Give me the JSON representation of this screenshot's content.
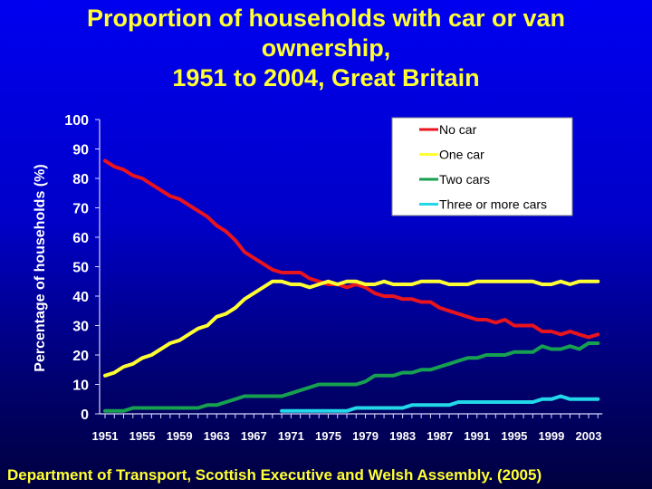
{
  "title_lines": [
    "Proportion of households with car or van",
    "ownership,",
    "1951 to 2004, Great Britain"
  ],
  "source": "Department of Transport, Scottish Executive and Welsh Assembly. (2005)",
  "chart_data": {
    "type": "line",
    "title": "Proportion of households with car or van ownership, 1951 to 2004, Great Britain",
    "ylabel": "Percentage of households (%)",
    "xlabel": "",
    "xlim": [
      1951,
      2004
    ],
    "ylim": [
      0,
      100
    ],
    "yticks": [
      0,
      10,
      20,
      30,
      40,
      50,
      60,
      70,
      80,
      90,
      100
    ],
    "xtick_labels": [
      "1951",
      "1955",
      "1959",
      "1963",
      "1967",
      "1971",
      "1975",
      "1979",
      "1983",
      "1987",
      "1991",
      "1995",
      "1999",
      "2003"
    ],
    "grid": false,
    "legend_position": "top-right",
    "series": [
      {
        "name": "No car",
        "color": "#e8141e",
        "x_start": 1951,
        "values": [
          86,
          84,
          83,
          81,
          80,
          78,
          76,
          74,
          73,
          71,
          69,
          67,
          64,
          62,
          59,
          55,
          53,
          51,
          49,
          48,
          48,
          48,
          46,
          45,
          44,
          44,
          43,
          44,
          43,
          41,
          40,
          40,
          39,
          39,
          38,
          38,
          36,
          35,
          34,
          33,
          32,
          32,
          31,
          32,
          30,
          30,
          30,
          28,
          28,
          27,
          28,
          27,
          26,
          27
        ]
      },
      {
        "name": "One car",
        "color": "#ffff33",
        "x_start": 1951,
        "values": [
          13,
          14,
          16,
          17,
          19,
          20,
          22,
          24,
          25,
          27,
          29,
          30,
          33,
          34,
          36,
          39,
          41,
          43,
          45,
          45,
          44,
          44,
          43,
          44,
          45,
          44,
          45,
          45,
          44,
          44,
          45,
          44,
          44,
          44,
          45,
          45,
          45,
          44,
          44,
          44,
          45,
          45,
          45,
          45,
          45,
          45,
          45,
          44,
          44,
          45,
          44,
          45,
          45,
          45
        ]
      },
      {
        "name": "Two cars",
        "color": "#16a050",
        "x_start": 1951,
        "values": [
          1,
          1,
          1,
          2,
          2,
          2,
          2,
          2,
          2,
          2,
          2,
          3,
          3,
          4,
          5,
          6,
          6,
          6,
          6,
          6,
          7,
          8,
          9,
          10,
          10,
          10,
          10,
          10,
          11,
          13,
          13,
          13,
          14,
          14,
          15,
          15,
          16,
          17,
          18,
          19,
          19,
          20,
          20,
          20,
          21,
          21,
          21,
          23,
          22,
          22,
          23,
          22,
          24,
          24
        ]
      },
      {
        "name": "Three or more cars",
        "color": "#22d8e8",
        "x_start": 1970,
        "values": [
          1,
          1,
          1,
          1,
          1,
          1,
          1,
          1,
          2,
          2,
          2,
          2,
          2,
          2,
          3,
          3,
          3,
          3,
          3,
          4,
          4,
          4,
          4,
          4,
          4,
          4,
          4,
          4,
          5,
          5,
          6,
          5,
          5,
          5,
          5
        ]
      }
    ]
  }
}
